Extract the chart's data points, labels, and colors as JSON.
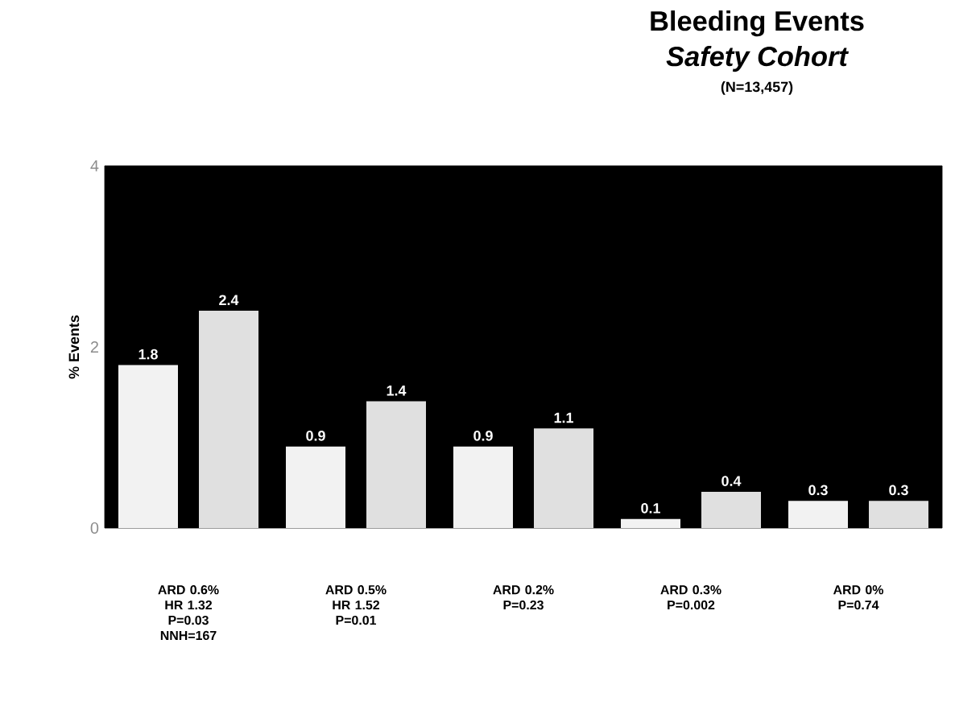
{
  "chart_data": {
    "type": "bar",
    "title": "Bleeding Events",
    "subtitle": "Safety Cohort",
    "ylabel": "% Events",
    "annotations": [
      "(N=13,457)",
      "ARD 0.6% HR 1.32 P=0.03 NNH=167",
      "ARD 0.5% HR 1.52 P=0.01",
      "ARD 0.2% P=0.23",
      "ARD 0.3% P=0.002",
      "ARD 0% P=0.74"
    ],
    "categories": [
      null,
      null,
      null,
      null,
      null
    ],
    "series": [
      {
        "color": "#f2f2f2",
        "values": [
          1.8,
          0.9,
          0.9,
          0.1,
          0.3
        ]
      },
      {
        "color": "#e0e0e0",
        "values": [
          2.4,
          1.4,
          1.1,
          0.4,
          0.3
        ]
      }
    ],
    "ylim": [
      0,
      4
    ],
    "yticks": [
      0,
      2,
      4
    ],
    "data_labels": true
  }
}
